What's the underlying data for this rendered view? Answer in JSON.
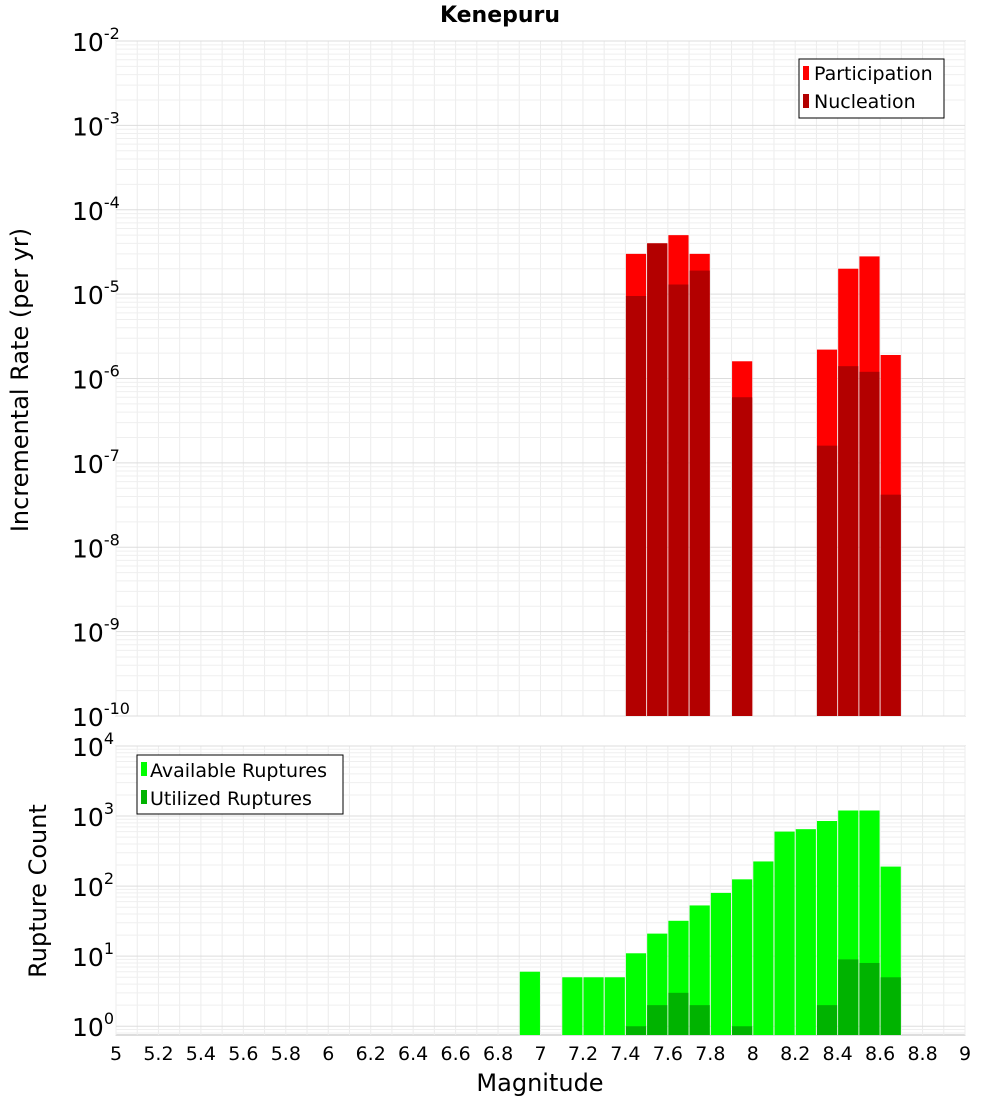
{
  "chart_data": [
    {
      "type": "bar",
      "title": "Kenepuru",
      "ylabel": "Incremental Rate (per yr)",
      "xlabel": "",
      "xlim": [
        5,
        9
      ],
      "ylim": [
        1e-10,
        0.01
      ],
      "yscale": "log",
      "grid": true,
      "legend_position": "top-right",
      "x": [
        7.45,
        7.55,
        7.65,
        7.75,
        7.95,
        8.35,
        8.45,
        8.55,
        8.65
      ],
      "series": [
        {
          "name": "Participation",
          "color": "#ff0000",
          "values": [
            3e-05,
            4e-05,
            5e-05,
            3e-05,
            1.6e-06,
            2.2e-06,
            2e-05,
            2.8e-05,
            1.9e-06
          ]
        },
        {
          "name": "Nucleation",
          "color": "#b30000",
          "values": [
            9.5e-06,
            4e-05,
            1.3e-05,
            1.9e-05,
            6e-07,
            1.6e-07,
            1.4e-06,
            1.2e-06,
            4.2e-08
          ]
        }
      ]
    },
    {
      "type": "bar",
      "ylabel": "Rupture Count",
      "xlabel": "Magnitude",
      "xlim": [
        5,
        9
      ],
      "ylim": [
        0.75,
        10000
      ],
      "yscale": "log",
      "grid": true,
      "legend_position": "top-left",
      "x": [
        6.95,
        7.15,
        7.25,
        7.35,
        7.45,
        7.55,
        7.65,
        7.75,
        7.85,
        7.95,
        8.05,
        8.15,
        8.25,
        8.35,
        8.45,
        8.55,
        8.65
      ],
      "series": [
        {
          "name": "Available Ruptures",
          "color": "#00ff00",
          "values": [
            6,
            5,
            5,
            5,
            11,
            21,
            32,
            53,
            80,
            125,
            225,
            600,
            650,
            850,
            1200,
            1200,
            190
          ]
        },
        {
          "name": "Utilized Ruptures",
          "color": "#00b300",
          "values": [
            0,
            0,
            0,
            0,
            1,
            2,
            3,
            2,
            0,
            1,
            0,
            0,
            0,
            2,
            9,
            8,
            5
          ]
        }
      ]
    }
  ],
  "x_ticks": [
    "5",
    "5.2",
    "5.4",
    "5.6",
    "5.8",
    "6",
    "6.2",
    "6.4",
    "6.6",
    "6.8",
    "7",
    "7.2",
    "7.4",
    "7.6",
    "7.8",
    "8",
    "8.2",
    "8.4",
    "8.6",
    "8.8",
    "9"
  ],
  "top_y_ticks": [
    {
      "base": "10",
      "exp": "-2"
    },
    {
      "base": "10",
      "exp": "-3"
    },
    {
      "base": "10",
      "exp": "-4"
    },
    {
      "base": "10",
      "exp": "-5"
    },
    {
      "base": "10",
      "exp": "-6"
    },
    {
      "base": "10",
      "exp": "-7"
    },
    {
      "base": "10",
      "exp": "-8"
    },
    {
      "base": "10",
      "exp": "-9"
    },
    {
      "base": "10",
      "exp": "-10"
    }
  ],
  "bottom_y_ticks": [
    {
      "base": "10",
      "exp": "4"
    },
    {
      "base": "10",
      "exp": "3"
    },
    {
      "base": "10",
      "exp": "2"
    },
    {
      "base": "10",
      "exp": "1"
    },
    {
      "base": "10",
      "exp": "0"
    }
  ]
}
